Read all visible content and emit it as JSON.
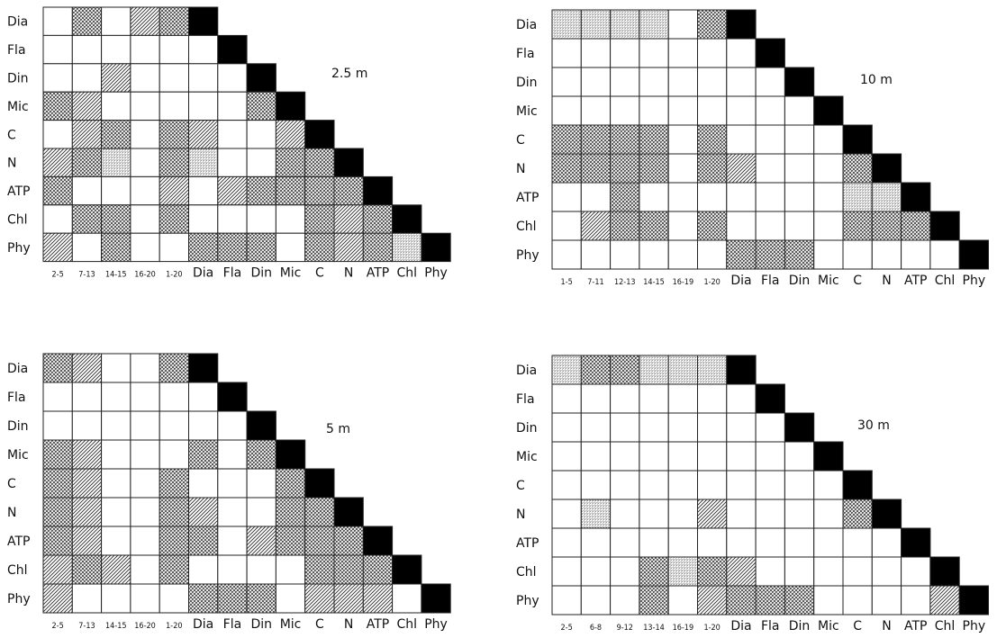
{
  "panels": [
    {
      "depth": "2.5 m",
      "rows": [
        "Dia",
        "Fla",
        "Din",
        "Mic",
        "C",
        "N",
        "ATP",
        "Chl",
        "Phy"
      ],
      "cols": [
        "2-5",
        "7-13",
        "14-15",
        "16-20",
        "1-20",
        "Dia",
        "Fla",
        "Din",
        "Mic",
        "C",
        "N",
        "ATP",
        "Chl",
        "Phy"
      ],
      "cells": [
        [
          0,
          2,
          0,
          1,
          2
        ],
        [
          0,
          0,
          0,
          0,
          0,
          0
        ],
        [
          0,
          0,
          1,
          0,
          0,
          0,
          0
        ],
        [
          2,
          1,
          0,
          0,
          0,
          0,
          0,
          2
        ],
        [
          0,
          1,
          2,
          0,
          2,
          1,
          0,
          0,
          1
        ],
        [
          1,
          2,
          3,
          0,
          2,
          3,
          0,
          0,
          2,
          2
        ],
        [
          2,
          0,
          0,
          0,
          1,
          0,
          1,
          2,
          2,
          2,
          2
        ],
        [
          0,
          2,
          2,
          0,
          2,
          0,
          0,
          0,
          0,
          2,
          1,
          2
        ],
        [
          1,
          0,
          2,
          0,
          0,
          2,
          2,
          2,
          0,
          2,
          1,
          2,
          3
        ]
      ]
    },
    {
      "depth": "10 m",
      "rows": [
        "Dia",
        "Fla",
        "Din",
        "Mic",
        "C",
        "N",
        "ATP",
        "Chl",
        "Phy"
      ],
      "cols": [
        "1-5",
        "7-11",
        "12-13",
        "14-15",
        "16-19",
        "1-20",
        "Dia",
        "Fla",
        "Din",
        "Mic",
        "C",
        "N",
        "ATP",
        "Chl",
        "Phy"
      ],
      "cells": [
        [
          3,
          3,
          3,
          3,
          0,
          2
        ],
        [
          0,
          0,
          0,
          0,
          0,
          0,
          0
        ],
        [
          0,
          0,
          0,
          0,
          0,
          0,
          0,
          0
        ],
        [
          0,
          0,
          0,
          0,
          0,
          0,
          0,
          0,
          0
        ],
        [
          2,
          2,
          2,
          2,
          0,
          2,
          0,
          0,
          0,
          0
        ],
        [
          2,
          2,
          2,
          2,
          0,
          2,
          1,
          0,
          0,
          0,
          2
        ],
        [
          0,
          0,
          2,
          0,
          0,
          0,
          0,
          0,
          0,
          0,
          3,
          3
        ],
        [
          0,
          1,
          2,
          2,
          0,
          2,
          0,
          0,
          0,
          0,
          2,
          2,
          2
        ],
        [
          0,
          0,
          0,
          0,
          0,
          0,
          2,
          2,
          2,
          0,
          0,
          0,
          0,
          0
        ]
      ]
    },
    {
      "depth": "5 m",
      "rows": [
        "Dia",
        "Fla",
        "Din",
        "Mic",
        "C",
        "N",
        "ATP",
        "Chl",
        "Phy"
      ],
      "cols": [
        "2-5",
        "7-13",
        "14-15",
        "16-20",
        "1-20",
        "Dia",
        "Fla",
        "Din",
        "Mic",
        "C",
        "N",
        "ATP",
        "Chl",
        "Phy"
      ],
      "cells": [
        [
          2,
          1,
          0,
          0,
          2
        ],
        [
          0,
          0,
          0,
          0,
          0,
          0
        ],
        [
          0,
          0,
          0,
          0,
          0,
          0,
          0
        ],
        [
          2,
          1,
          0,
          0,
          0,
          2,
          0,
          2
        ],
        [
          2,
          1,
          0,
          0,
          2,
          0,
          0,
          0,
          2
        ],
        [
          2,
          1,
          0,
          0,
          2,
          1,
          0,
          0,
          2,
          2
        ],
        [
          2,
          1,
          0,
          0,
          2,
          2,
          0,
          1,
          2,
          2,
          2
        ],
        [
          1,
          2,
          1,
          0,
          2,
          0,
          0,
          0,
          0,
          2,
          2,
          2
        ],
        [
          1,
          0,
          0,
          0,
          0,
          2,
          2,
          2,
          0,
          1,
          1,
          1,
          0
        ]
      ]
    },
    {
      "depth": "30 m",
      "rows": [
        "Dia",
        "Fla",
        "Din",
        "Mic",
        "C",
        "N",
        "ATP",
        "Chl",
        "Phy"
      ],
      "cols": [
        "2-5",
        "6-8",
        "9-12",
        "13-14",
        "16-19",
        "1-20",
        "Dia",
        "Fla",
        "Din",
        "Mic",
        "C",
        "N",
        "ATP",
        "Chl",
        "Phy"
      ],
      "cells": [
        [
          3,
          2,
          2,
          3,
          3,
          3
        ],
        [
          0,
          0,
          0,
          0,
          0,
          0,
          0
        ],
        [
          0,
          0,
          0,
          0,
          0,
          0,
          0,
          0
        ],
        [
          0,
          0,
          0,
          0,
          0,
          0,
          0,
          0,
          0
        ],
        [
          0,
          0,
          0,
          0,
          0,
          0,
          0,
          0,
          0,
          0
        ],
        [
          0,
          3,
          0,
          0,
          0,
          1,
          0,
          0,
          0,
          0,
          2
        ],
        [
          0,
          0,
          0,
          0,
          0,
          0,
          0,
          0,
          0,
          0,
          0,
          0
        ],
        [
          0,
          0,
          0,
          2,
          3,
          2,
          1,
          0,
          0,
          0,
          0,
          0,
          0
        ],
        [
          0,
          0,
          0,
          2,
          0,
          1,
          2,
          2,
          2,
          0,
          0,
          0,
          0,
          1
        ]
      ]
    }
  ]
}
